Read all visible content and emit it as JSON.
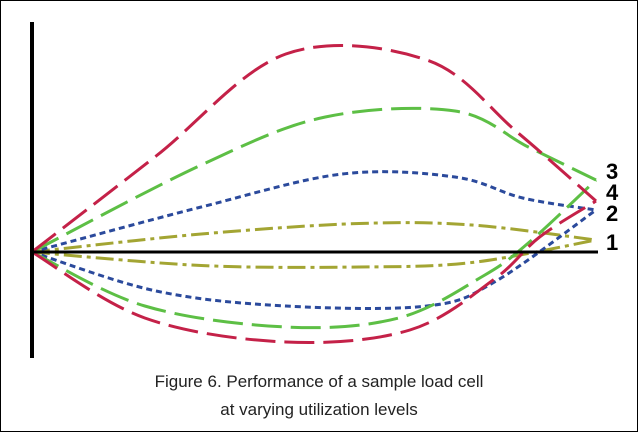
{
  "caption": {
    "line1": "Figure 6.  Performance of a sample load cell",
    "line2": "at varying utilization levels"
  },
  "chart_data": {
    "type": "line",
    "title": "",
    "xlabel": "",
    "ylabel": "",
    "grid": false,
    "xlim": [
      0,
      100
    ],
    "ylim": [
      -33,
      70
    ],
    "series": [
      {
        "name": "1",
        "label": "1",
        "color": "#a3a533",
        "dash": "dashdot",
        "upper": [
          [
            0,
            0
          ],
          [
            30,
            6
          ],
          [
            58,
            9.5
          ],
          [
            78,
            9
          ],
          [
            100,
            4
          ]
        ],
        "lower": [
          [
            0,
            0
          ],
          [
            30,
            -4.5
          ],
          [
            58,
            -5
          ],
          [
            78,
            -3.5
          ],
          [
            100,
            4
          ]
        ]
      },
      {
        "name": "2",
        "label": "2",
        "color": "#2b4a9c",
        "dash": "dots",
        "upper": [
          [
            0,
            0
          ],
          [
            30,
            15
          ],
          [
            55,
            26
          ],
          [
            75,
            25
          ],
          [
            87,
            18
          ],
          [
            100,
            14
          ]
        ],
        "lower": [
          [
            0,
            0
          ],
          [
            22,
            -13
          ],
          [
            45,
            -18
          ],
          [
            70,
            -18
          ],
          [
            82,
            -10
          ],
          [
            100,
            14
          ]
        ]
      },
      {
        "name": "3",
        "label": "3",
        "color": "#5dbf45",
        "dash": "long",
        "upper": [
          [
            0,
            0
          ],
          [
            30,
            29
          ],
          [
            52,
            45
          ],
          [
            75,
            47
          ],
          [
            88,
            35
          ],
          [
            100,
            24
          ]
        ],
        "lower": [
          [
            0,
            0
          ],
          [
            20,
            -18
          ],
          [
            45,
            -25
          ],
          [
            65,
            -22
          ],
          [
            80,
            -8
          ],
          [
            88,
            3
          ],
          [
            100,
            24
          ]
        ]
      },
      {
        "name": "4",
        "label": "4",
        "color": "#c42148",
        "dash": "long",
        "upper": [
          [
            0,
            0
          ],
          [
            22,
            32
          ],
          [
            45,
            66
          ],
          [
            70,
            64
          ],
          [
            86,
            40
          ],
          [
            100,
            17
          ]
        ],
        "lower": [
          [
            0,
            0
          ],
          [
            20,
            -22
          ],
          [
            45,
            -30
          ],
          [
            67,
            -26
          ],
          [
            82,
            -9
          ],
          [
            90,
            5
          ],
          [
            100,
            17
          ]
        ]
      }
    ],
    "curve_labels": [
      "3",
      "4",
      "2",
      "1"
    ]
  }
}
